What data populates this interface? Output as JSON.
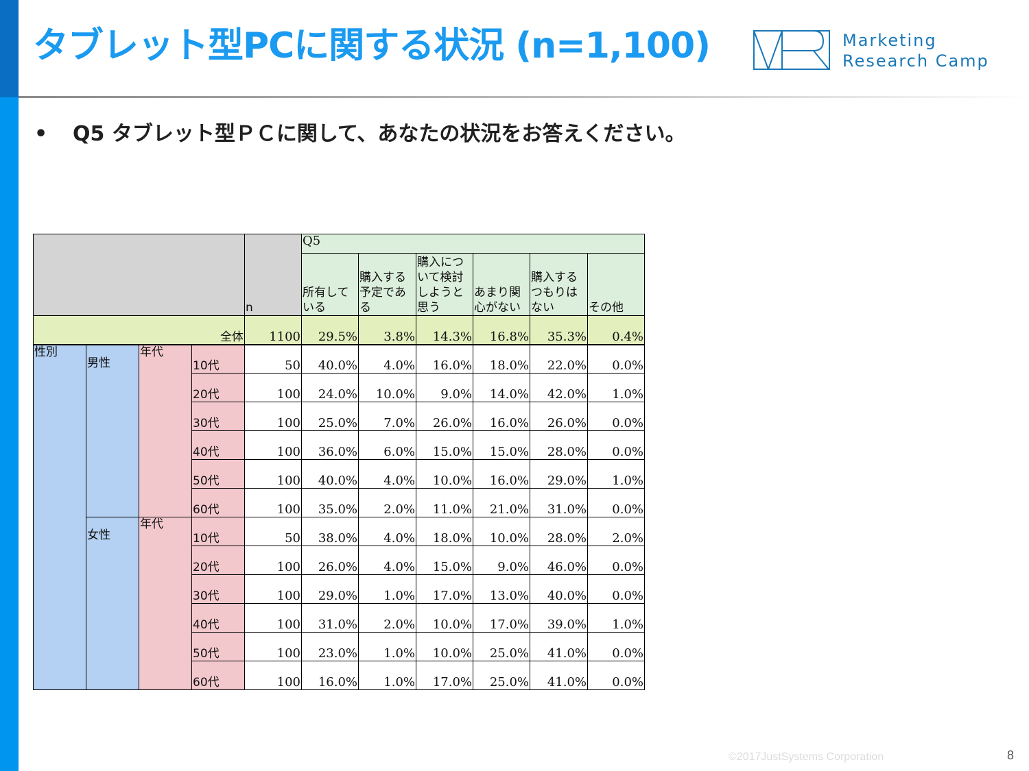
{
  "header": {
    "title": "タブレット型PCに関する状況 (n=1,100)",
    "logo_line1": "Marketing",
    "logo_line2": "Research Camp",
    "accent_color": "#1a9af0"
  },
  "question": {
    "bullet": "•",
    "text": "Q5 タブレット型ＰＣに関して、あなたの状況をお答えください。"
  },
  "table": {
    "n_label": "n",
    "group_label": "Q5",
    "columns": [
      "所有している",
      "購入する予定である",
      "購入について検討しようと思う",
      "あまり関心がない",
      "購入するつもりはない",
      "その他"
    ],
    "total": {
      "label": "全体",
      "n": "1100",
      "values": [
        "29.5%",
        "3.8%",
        "14.3%",
        "16.8%",
        "35.3%",
        "0.4%"
      ]
    },
    "dimension_label": "性別",
    "age_label": "年代",
    "groups": [
      {
        "label": "男性",
        "rows": [
          {
            "age": "10代",
            "n": "50",
            "values": [
              "40.0%",
              "4.0%",
              "16.0%",
              "18.0%",
              "22.0%",
              "0.0%"
            ]
          },
          {
            "age": "20代",
            "n": "100",
            "values": [
              "24.0%",
              "10.0%",
              "9.0%",
              "14.0%",
              "42.0%",
              "1.0%"
            ]
          },
          {
            "age": "30代",
            "n": "100",
            "values": [
              "25.0%",
              "7.0%",
              "26.0%",
              "16.0%",
              "26.0%",
              "0.0%"
            ]
          },
          {
            "age": "40代",
            "n": "100",
            "values": [
              "36.0%",
              "6.0%",
              "15.0%",
              "15.0%",
              "28.0%",
              "0.0%"
            ]
          },
          {
            "age": "50代",
            "n": "100",
            "values": [
              "40.0%",
              "4.0%",
              "10.0%",
              "16.0%",
              "29.0%",
              "1.0%"
            ]
          },
          {
            "age": "60代",
            "n": "100",
            "values": [
              "35.0%",
              "2.0%",
              "11.0%",
              "21.0%",
              "31.0%",
              "0.0%"
            ]
          }
        ]
      },
      {
        "label": "女性",
        "rows": [
          {
            "age": "10代",
            "n": "50",
            "values": [
              "38.0%",
              "4.0%",
              "18.0%",
              "10.0%",
              "28.0%",
              "2.0%"
            ]
          },
          {
            "age": "20代",
            "n": "100",
            "values": [
              "26.0%",
              "4.0%",
              "15.0%",
              "9.0%",
              "46.0%",
              "0.0%"
            ]
          },
          {
            "age": "30代",
            "n": "100",
            "values": [
              "29.0%",
              "1.0%",
              "17.0%",
              "13.0%",
              "40.0%",
              "0.0%"
            ]
          },
          {
            "age": "40代",
            "n": "100",
            "values": [
              "31.0%",
              "2.0%",
              "10.0%",
              "17.0%",
              "39.0%",
              "1.0%"
            ]
          },
          {
            "age": "50代",
            "n": "100",
            "values": [
              "23.0%",
              "1.0%",
              "10.0%",
              "25.0%",
              "41.0%",
              "0.0%"
            ]
          },
          {
            "age": "60代",
            "n": "100",
            "values": [
              "16.0%",
              "1.0%",
              "17.0%",
              "25.0%",
              "41.0%",
              "0.0%"
            ]
          }
        ]
      }
    ]
  },
  "footer": {
    "copyright": "©2017JustSystems Corporation",
    "page_number": "8"
  }
}
